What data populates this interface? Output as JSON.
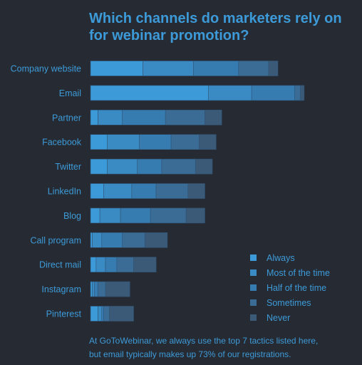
{
  "title_lines": [
    "Which channels do marketers rely on",
    "for webinar promotion?"
  ],
  "footer_lines": [
    "At GoToWebinar, we always use the top 7 tactics listed here,",
    "but email typically makes up 73% of our registrations."
  ],
  "colors": {
    "background": "#262b33",
    "text": "#3d9ad8",
    "series": [
      "#3d9ad8",
      "#3a8ac4",
      "#377cb0",
      "#3a6c96",
      "#3b5a78"
    ]
  },
  "chart_data": {
    "type": "bar",
    "orientation": "horizontal",
    "stacked": true,
    "title": "Which channels do marketers rely on for webinar promotion?",
    "categories": [
      "Company website",
      "Email",
      "Partner",
      "Facebook",
      "Twitter",
      "LinkedIn",
      "Blog",
      "Call program",
      "Direct mail",
      "Instagram",
      "Pinterest"
    ],
    "series": [
      {
        "name": "Always",
        "values": [
          28,
          63,
          4,
          9,
          9,
          7,
          5,
          1,
          3,
          1,
          4
        ]
      },
      {
        "name": "Most of the time",
        "values": [
          27,
          23,
          13,
          17,
          16,
          15,
          11,
          5,
          5,
          1,
          2
        ]
      },
      {
        "name": "Half of the time",
        "values": [
          24,
          23,
          23,
          17,
          13,
          13,
          16,
          11,
          6,
          2,
          1
        ]
      },
      {
        "name": "Sometimes",
        "values": [
          16,
          3,
          21,
          15,
          18,
          17,
          19,
          12,
          9,
          4,
          3
        ]
      },
      {
        "name": "Never",
        "values": [
          5,
          2,
          9,
          9,
          9,
          9,
          10,
          12,
          12,
          13,
          13
        ]
      }
    ],
    "legend_position": "bottom-right",
    "grid": false
  }
}
